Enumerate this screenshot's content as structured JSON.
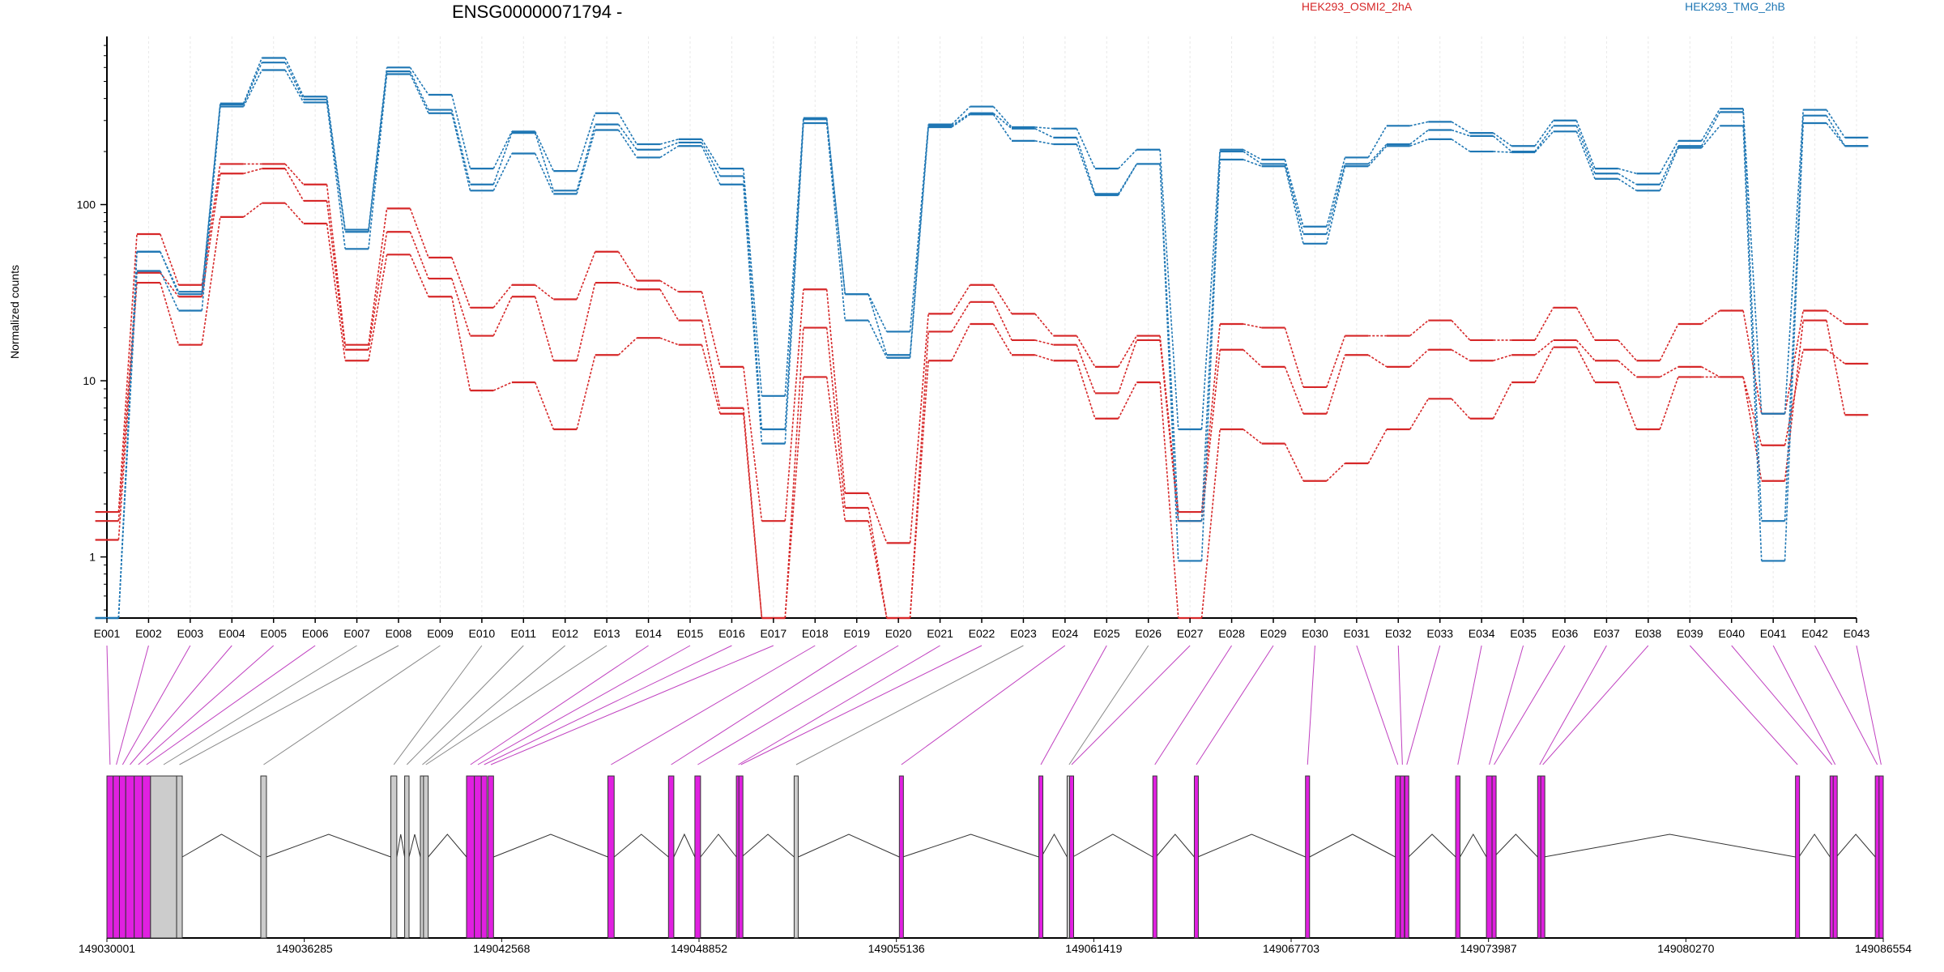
{
  "chart_data": {
    "type": "line",
    "title": "ENSG00000071794 -",
    "ylabel": "Normalized counts",
    "yscale": "log",
    "yticks": [
      "1",
      "10",
      "100"
    ],
    "ytick_values": [
      1,
      10,
      100
    ],
    "ylim": [
      0.45,
      900
    ],
    "colors": {
      "HEK293_OSMI2_2hA": "#d62728",
      "HEK293_TMG_2hB": "#1f77b4",
      "exon_diff": "#e020e0",
      "exon_plain": "#cccccc"
    },
    "legend": [
      {
        "label": "HEK293_OSMI2_2hA",
        "color": "#d62728"
      },
      {
        "label": "HEK293_TMG_2hB",
        "color": "#1f77b4"
      }
    ],
    "categories": [
      "E001",
      "E002",
      "E003",
      "E004",
      "E005",
      "E006",
      "E007",
      "E008",
      "E009",
      "E010",
      "E011",
      "E012",
      "E013",
      "E014",
      "E015",
      "E016",
      "E017",
      "E018",
      "E019",
      "E020",
      "E021",
      "E022",
      "E023",
      "E024",
      "E025",
      "E026",
      "E027",
      "E028",
      "E029",
      "E030",
      "E031",
      "E032",
      "E033",
      "E034",
      "E035",
      "E036",
      "E037",
      "E038",
      "E039",
      "E040",
      "E041",
      "E042",
      "E043"
    ],
    "series": [
      {
        "name": "HEK293_OSMI2_2hA",
        "values": [
          1.8,
          68,
          35,
          170,
          170,
          130,
          16,
          95,
          50,
          26,
          35,
          29,
          54,
          37,
          32,
          12,
          1.6,
          33,
          2.3,
          1.2,
          24,
          35,
          24,
          18,
          12,
          18,
          1.8,
          21,
          20,
          9.2,
          18,
          18,
          22,
          17,
          17,
          26,
          17,
          13,
          21,
          25,
          6.5,
          25,
          21
        ]
      },
      {
        "name": "HEK293_OSMI2_2hA",
        "values": [
          1.6,
          41,
          30,
          150,
          160,
          105,
          15,
          70,
          38,
          18,
          30,
          13,
          36,
          33,
          22,
          7,
          0.45,
          20,
          1.9,
          0.45,
          19,
          28,
          17,
          16,
          8.5,
          17,
          1.6,
          15,
          12,
          6.5,
          14,
          12,
          15,
          13,
          14,
          17,
          13,
          10.5,
          12,
          10.5,
          4.3,
          15,
          12.5
        ]
      },
      {
        "name": "HEK293_OSMI2_2hA",
        "values": [
          1.25,
          36,
          16,
          85,
          102,
          78,
          13,
          52,
          30,
          8.8,
          9.8,
          5.3,
          14,
          17.5,
          16,
          6.5,
          0.45,
          10.5,
          1.6,
          0.45,
          13,
          21,
          14,
          13,
          6.1,
          9.8,
          0.45,
          5.3,
          4.4,
          2.7,
          3.4,
          5.3,
          7.9,
          6.1,
          9.8,
          15.5,
          9.8,
          5.3,
          10.5,
          10.5,
          2.7,
          22,
          6.4
        ]
      },
      {
        "name": "HEK293_TMG_2hB",
        "values": [
          0.45,
          54,
          32,
          375,
          680,
          410,
          72,
          600,
          420,
          160,
          260,
          155,
          330,
          220,
          235,
          160,
          8.2,
          310,
          31,
          19,
          285,
          360,
          275,
          270,
          160,
          205,
          5.3,
          205,
          180,
          75,
          185,
          280,
          295,
          255,
          215,
          300,
          160,
          150,
          230,
          350,
          6.5,
          345,
          240
        ]
      },
      {
        "name": "HEK293_TMG_2hB",
        "values": [
          0.45,
          54,
          31,
          370,
          640,
          395,
          70,
          570,
          345,
          130,
          255,
          120,
          285,
          205,
          225,
          145,
          5.3,
          305,
          31,
          14,
          280,
          330,
          270,
          240,
          115,
          170,
          1.6,
          200,
          170,
          68,
          170,
          220,
          265,
          245,
          200,
          280,
          150,
          130,
          215,
          335,
          1.6,
          320,
          215
        ]
      },
      {
        "name": "HEK293_TMG_2hB",
        "values": [
          0.45,
          42,
          25,
          360,
          580,
          380,
          56,
          550,
          330,
          120,
          195,
          115,
          265,
          185,
          215,
          130,
          4.4,
          290,
          22,
          13.5,
          275,
          325,
          230,
          220,
          113,
          170,
          0.95,
          180,
          165,
          60,
          165,
          215,
          235,
          200,
          198,
          260,
          140,
          120,
          210,
          280,
          0.95,
          290,
          215
        ]
      }
    ],
    "coordinates": [
      "149030001",
      "149036285",
      "149042568",
      "149048852",
      "149055136",
      "149061419",
      "149067703",
      "149073987",
      "149080270",
      "149086554"
    ],
    "gene_model": {
      "exons": [
        {
          "id": "E001",
          "start": 149030001,
          "end": 149030200,
          "highlighted": true
        },
        {
          "id": "E002",
          "start": 149030200,
          "end": 149030400,
          "highlighted": true
        },
        {
          "id": "E003",
          "start": 149030400,
          "end": 149030600,
          "highlighted": true
        },
        {
          "id": "E004",
          "start": 149030600,
          "end": 149030870,
          "highlighted": true
        },
        {
          "id": "E005",
          "start": 149030870,
          "end": 149031130,
          "highlighted": true
        },
        {
          "id": "E006",
          "start": 149031130,
          "end": 149031390,
          "highlighted": true
        },
        {
          "id": "E007",
          "start": 149031390,
          "end": 149032220,
          "highlighted": false
        },
        {
          "id": "E008",
          "start": 149032220,
          "end": 149032400,
          "highlighted": false
        },
        {
          "id": "E009",
          "start": 149034900,
          "end": 149035080,
          "highlighted": false
        },
        {
          "id": "E010",
          "start": 149039040,
          "end": 149039230,
          "highlighted": false
        },
        {
          "id": "E011",
          "start": 149039480,
          "end": 149039620,
          "highlighted": false
        },
        {
          "id": "E012",
          "start": 149039980,
          "end": 149040080,
          "highlighted": false
        },
        {
          "id": "E013",
          "start": 149040080,
          "end": 149040230,
          "highlighted": false
        },
        {
          "id": "E014",
          "start": 149041450,
          "end": 149041700,
          "highlighted": true
        },
        {
          "id": "E015",
          "start": 149041700,
          "end": 149041920,
          "highlighted": true
        },
        {
          "id": "E016",
          "start": 149041920,
          "end": 149042100,
          "highlighted": true
        },
        {
          "id": "E017",
          "start": 149042140,
          "end": 149042310,
          "highlighted": true
        },
        {
          "id": "E018",
          "start": 149045950,
          "end": 149046150,
          "highlighted": true
        },
        {
          "id": "E019",
          "start": 149047880,
          "end": 149048050,
          "highlighted": true
        },
        {
          "id": "E020",
          "start": 149048720,
          "end": 149048900,
          "highlighted": true
        },
        {
          "id": "E021",
          "start": 149050040,
          "end": 149050120,
          "highlighted": true
        },
        {
          "id": "E022",
          "start": 149050120,
          "end": 149050210,
          "highlighted": true
        },
        {
          "id": "E023",
          "start": 149051880,
          "end": 149052010,
          "highlighted": false
        },
        {
          "id": "E024",
          "start": 149055230,
          "end": 149055340,
          "highlighted": true
        },
        {
          "id": "E025",
          "start": 149059670,
          "end": 149059750,
          "highlighted": true
        },
        {
          "id": "E026",
          "start": 149060570,
          "end": 149060650,
          "highlighted": false
        },
        {
          "id": "E027",
          "start": 149060650,
          "end": 149060750,
          "highlighted": true
        },
        {
          "id": "E028",
          "start": 149063300,
          "end": 149063400,
          "highlighted": true
        },
        {
          "id": "E029",
          "start": 149064620,
          "end": 149064730,
          "highlighted": true
        },
        {
          "id": "E030",
          "start": 149068160,
          "end": 149068290,
          "highlighted": true
        },
        {
          "id": "E031",
          "start": 149071020,
          "end": 149071180,
          "highlighted": true
        },
        {
          "id": "E032",
          "start": 149071180,
          "end": 149071250,
          "highlighted": true
        },
        {
          "id": "E033",
          "start": 149071320,
          "end": 149071440,
          "highlighted": true
        },
        {
          "id": "E034",
          "start": 149072940,
          "end": 149073080,
          "highlighted": true
        },
        {
          "id": "E035",
          "start": 149073920,
          "end": 149074100,
          "highlighted": true
        },
        {
          "id": "E036",
          "start": 149074100,
          "end": 149074160,
          "highlighted": true
        },
        {
          "id": "E037",
          "start": 149075550,
          "end": 149075650,
          "highlighted": true
        },
        {
          "id": "E038",
          "start": 149075650,
          "end": 149075750,
          "highlighted": true
        },
        {
          "id": "E039",
          "start": 149083760,
          "end": 149083870,
          "highlighted": true
        },
        {
          "id": "E040",
          "start": 149084860,
          "end": 149084960,
          "highlighted": true
        },
        {
          "id": "E041",
          "start": 149084960,
          "end": 149085060,
          "highlighted": true
        },
        {
          "id": "E042",
          "start": 149086300,
          "end": 149086420,
          "highlighted": true
        },
        {
          "id": "E043",
          "start": 149086420,
          "end": 149086554,
          "highlighted": true
        }
      ]
    }
  }
}
